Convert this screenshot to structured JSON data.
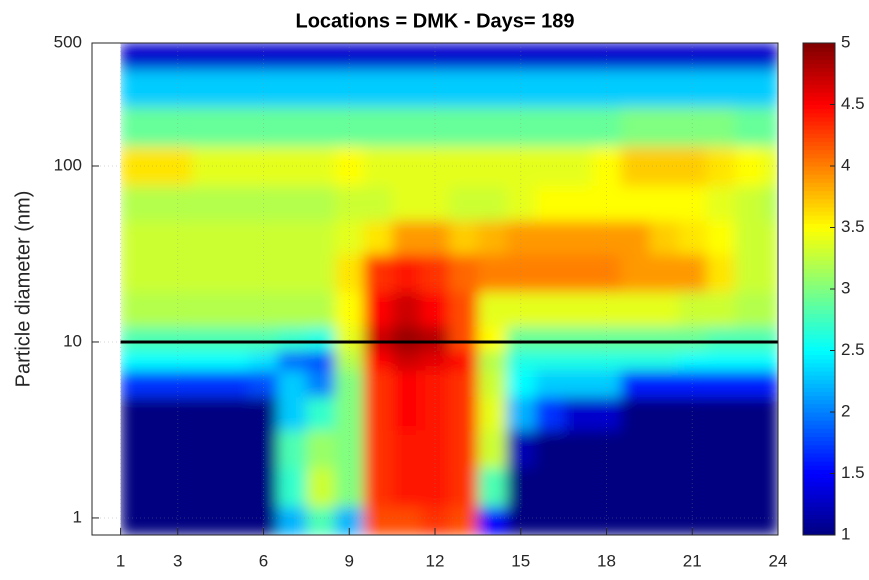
{
  "chart_data": {
    "type": "heatmap",
    "title": "Locations = DMK -  Days= 189",
    "ylabel": "Particle diameter (nm)",
    "colormap": "jet",
    "xlim": [
      0,
      24
    ],
    "xticks": [
      1,
      3,
      6,
      9,
      12,
      15,
      18,
      21,
      24
    ],
    "ylim": [
      0.8,
      500
    ],
    "yticks": [
      1,
      10,
      100,
      500
    ],
    "yscale": "log",
    "grid": true,
    "clim": [
      1,
      5
    ],
    "cticks": [
      1,
      1.5,
      2,
      2.5,
      3,
      3.5,
      4,
      4.5,
      5
    ],
    "hline": 10,
    "hline_color": "#000000",
    "x": [
      1,
      2,
      3,
      4,
      5,
      6,
      7,
      8,
      9,
      10,
      11,
      12,
      13,
      14,
      15,
      16,
      17,
      18,
      19,
      20,
      21,
      22,
      23,
      24
    ],
    "y": [
      0.9,
      1.5,
      2.5,
      4,
      6,
      8,
      10,
      15,
      25,
      40,
      60,
      100,
      170,
      280,
      450
    ],
    "z": [
      [
        1,
        1,
        1,
        1,
        1,
        1,
        2.2,
        2.8,
        2.2,
        4.2,
        4.2,
        4.3,
        4.2,
        1.5,
        1,
        1,
        1,
        1,
        1,
        1,
        1,
        1,
        1,
        1
      ],
      [
        1,
        1,
        1,
        1,
        1,
        1,
        2.7,
        3.3,
        3,
        4.3,
        4.4,
        4.4,
        4.3,
        2.8,
        1,
        1,
        1,
        1,
        1,
        1,
        1,
        1,
        1,
        1
      ],
      [
        1,
        1,
        1,
        1,
        1,
        1,
        2.8,
        3.1,
        3,
        4.3,
        4.4,
        4.4,
        4.3,
        3.3,
        1.2,
        1,
        1,
        1,
        1,
        1,
        1,
        1,
        1,
        1
      ],
      [
        1,
        1,
        1,
        1,
        1,
        1,
        2.3,
        2.7,
        3,
        4.3,
        4.5,
        4.4,
        4.3,
        3.4,
        2.2,
        1.7,
        1.3,
        1.3,
        1,
        1,
        1,
        1,
        1,
        1
      ],
      [
        1.7,
        1.7,
        1.7,
        1.7,
        1.7,
        1.8,
        2.3,
        2,
        3,
        4.3,
        4.5,
        4.4,
        4.3,
        3.3,
        2.5,
        2.3,
        2.3,
        2.3,
        1.6,
        1.6,
        1.6,
        1.6,
        1.6,
        1.6
      ],
      [
        2.5,
        2.5,
        2.5,
        2.5,
        2.5,
        2.4,
        1.9,
        1.8,
        3.2,
        4.5,
        4.7,
        4.6,
        4.5,
        3.2,
        2.6,
        2.6,
        2.6,
        2.6,
        2.6,
        2.6,
        2.5,
        2.5,
        2.5,
        2.5
      ],
      [
        2.8,
        2.8,
        2.8,
        2.8,
        2.8,
        2.8,
        2.7,
        2.6,
        3.4,
        4.7,
        4.9,
        4.8,
        4.2,
        3.5,
        2.9,
        2.9,
        2.9,
        2.9,
        2.9,
        2.9,
        2.9,
        2.8,
        2.8,
        2.8
      ],
      [
        3.2,
        3.2,
        3.2,
        3.2,
        3.2,
        3.2,
        3.2,
        3.2,
        3.5,
        4.5,
        4.7,
        4.5,
        4.2,
        3.4,
        3.4,
        3.4,
        3.4,
        3.4,
        3.4,
        3.4,
        3.3,
        3.3,
        3.2,
        3.2
      ],
      [
        3.3,
        3.3,
        3.3,
        3.3,
        3.3,
        3.3,
        3.3,
        3.3,
        3.6,
        4.3,
        4.4,
        4.3,
        4.1,
        4,
        4,
        4,
        4,
        4,
        3.9,
        3.9,
        3.9,
        3.6,
        3.3,
        3.3
      ],
      [
        3.3,
        3.3,
        3.3,
        3.3,
        3.3,
        3.3,
        3.3,
        3.3,
        3.4,
        3.6,
        3.9,
        3.9,
        3.7,
        3.8,
        3.9,
        3.9,
        3.9,
        3.9,
        3.9,
        3.7,
        3.6,
        3.5,
        3.3,
        3.3
      ],
      [
        3.2,
        3.2,
        3.2,
        3.2,
        3.2,
        3.2,
        3.2,
        3.2,
        3.3,
        3.3,
        3.4,
        3.4,
        3.3,
        3.3,
        3.4,
        3.5,
        3.5,
        3.5,
        3.5,
        3.5,
        3.5,
        3.4,
        3.3,
        3.2
      ],
      [
        3.6,
        3.6,
        3.6,
        3.4,
        3.4,
        3.4,
        3.4,
        3.4,
        3.5,
        3.4,
        3.4,
        3.4,
        3.4,
        3.4,
        3.4,
        3.4,
        3.4,
        3.5,
        3.7,
        3.7,
        3.7,
        3.6,
        3.5,
        3.4
      ],
      [
        2.9,
        2.9,
        2.9,
        2.9,
        2.9,
        2.9,
        2.9,
        2.9,
        2.9,
        2.9,
        2.9,
        2.9,
        2.9,
        2.9,
        2.9,
        2.9,
        2.9,
        2.9,
        3,
        3,
        3,
        3,
        2.9,
        2.9
      ],
      [
        2.3,
        2.3,
        2.3,
        2.3,
        2.3,
        2.3,
        2.3,
        2.3,
        2.3,
        2.3,
        2.3,
        2.3,
        2.3,
        2.3,
        2.3,
        2.3,
        2.3,
        2.3,
        2.3,
        2.3,
        2.3,
        2.3,
        2.3,
        2.3
      ],
      [
        1.3,
        1.3,
        1.3,
        1.3,
        1.3,
        1.3,
        1.3,
        1.3,
        1.3,
        1.3,
        1.3,
        1.3,
        1.3,
        1.3,
        1.3,
        1.3,
        1.3,
        1.3,
        1.3,
        1.3,
        1.3,
        1.3,
        1.3,
        1.3
      ]
    ]
  }
}
